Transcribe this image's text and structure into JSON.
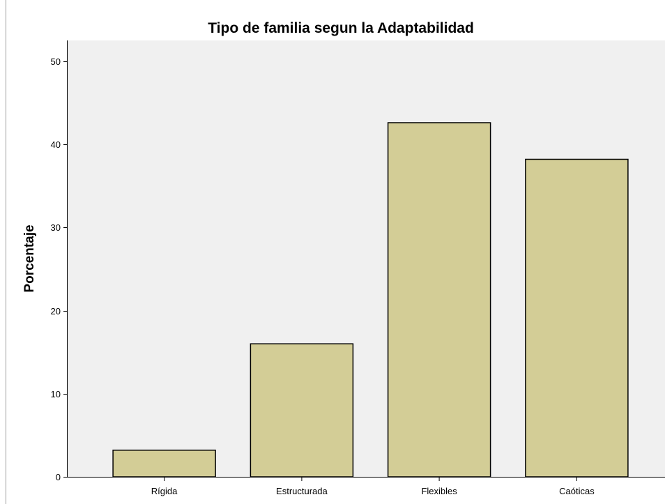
{
  "chart_data": {
    "type": "bar",
    "title": "Tipo de familia segun la Adaptabilidad",
    "xlabel": "",
    "ylabel": "Porcentaje",
    "categories": [
      "Rígida",
      "Estructurada",
      "Flexibles",
      "Caóticas"
    ],
    "values": [
      3.2,
      16.0,
      42.6,
      38.2
    ],
    "ylim": [
      0,
      52.5
    ],
    "yticks": [
      0,
      10,
      20,
      30,
      40,
      50
    ],
    "grid": false,
    "legend": "none",
    "colors": {
      "bar_fill": "#d3cd96",
      "bar_stroke": "#000000",
      "plot_background": "#f0f0f0",
      "page_background": "#ffffff"
    }
  }
}
